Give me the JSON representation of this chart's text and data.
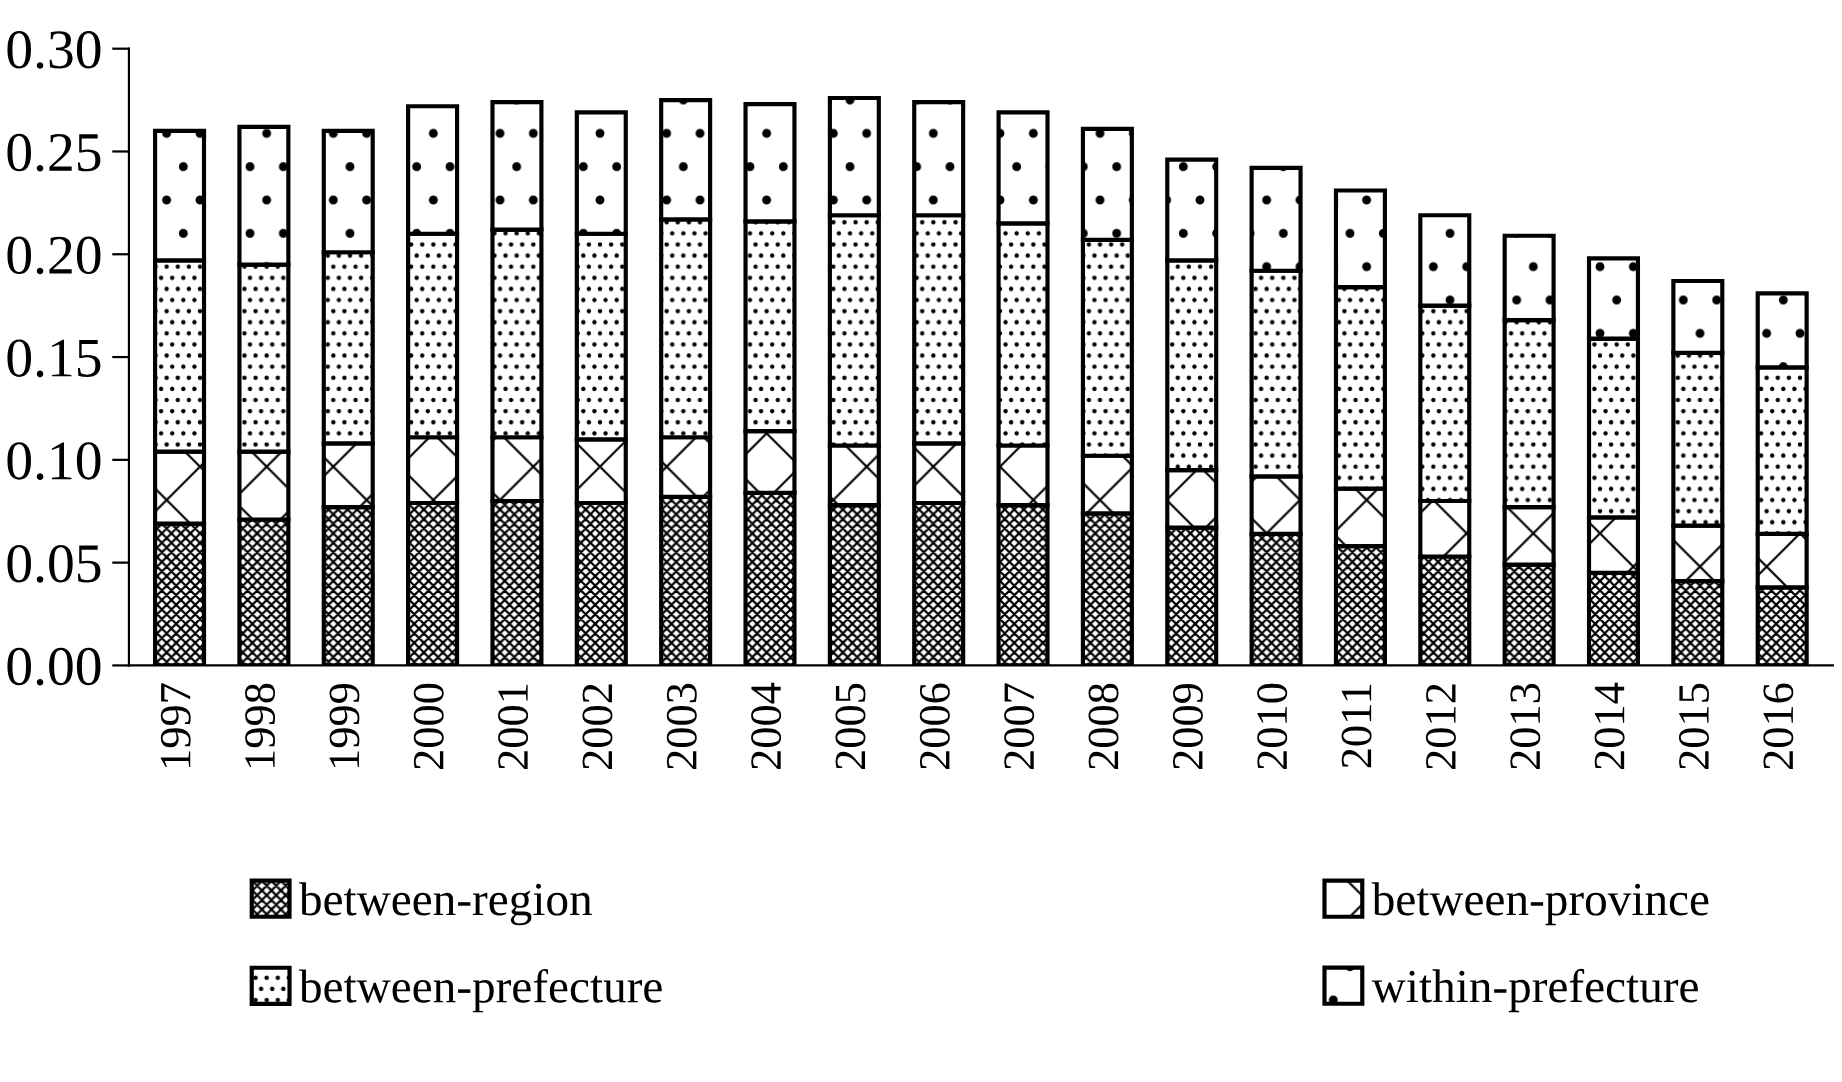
{
  "chart_data": {
    "type": "bar",
    "stacked": true,
    "categories": [
      "1997",
      "1998",
      "1999",
      "2000",
      "2001",
      "2002",
      "2003",
      "2004",
      "2005",
      "2006",
      "2007",
      "2008",
      "2009",
      "2010",
      "2011",
      "2012",
      "2013",
      "2014",
      "2015",
      "2016"
    ],
    "series": [
      {
        "name": "between-region",
        "color": "#000000",
        "values": [
          0.069,
          0.071,
          0.077,
          0.079,
          0.08,
          0.079,
          0.082,
          0.084,
          0.078,
          0.079,
          0.078,
          0.074,
          0.067,
          0.064,
          0.058,
          0.053,
          0.049,
          0.045,
          0.041,
          0.038
        ]
      },
      {
        "name": "between-province",
        "color": "#000000",
        "values": [
          0.035,
          0.033,
          0.031,
          0.032,
          0.031,
          0.031,
          0.029,
          0.03,
          0.029,
          0.029,
          0.029,
          0.028,
          0.028,
          0.028,
          0.028,
          0.027,
          0.028,
          0.027,
          0.027,
          0.026
        ]
      },
      {
        "name": "between-prefecture",
        "color": "#000000",
        "values": [
          0.093,
          0.091,
          0.093,
          0.099,
          0.101,
          0.1,
          0.106,
          0.102,
          0.112,
          0.111,
          0.108,
          0.105,
          0.102,
          0.1,
          0.098,
          0.095,
          0.091,
          0.087,
          0.084,
          0.081
        ]
      },
      {
        "name": "within-prefecture",
        "color": "#000000",
        "values": [
          0.063,
          0.067,
          0.059,
          0.062,
          0.062,
          0.059,
          0.058,
          0.057,
          0.057,
          0.055,
          0.054,
          0.054,
          0.049,
          0.05,
          0.047,
          0.044,
          0.041,
          0.039,
          0.035,
          0.036
        ]
      }
    ],
    "ylim": [
      0,
      0.3
    ],
    "yticks": [
      {
        "value": 0,
        "label": "0.00"
      },
      {
        "value": 0.05,
        "label": "0.05"
      },
      {
        "value": 0.1,
        "label": "0.10"
      },
      {
        "value": 0.15,
        "label": "0.15"
      },
      {
        "value": 0.2,
        "label": "0.20"
      },
      {
        "value": 0.25,
        "label": "0.25"
      },
      {
        "value": 0.3,
        "label": "0.30"
      }
    ],
    "grid": false,
    "legend": "bottom"
  }
}
